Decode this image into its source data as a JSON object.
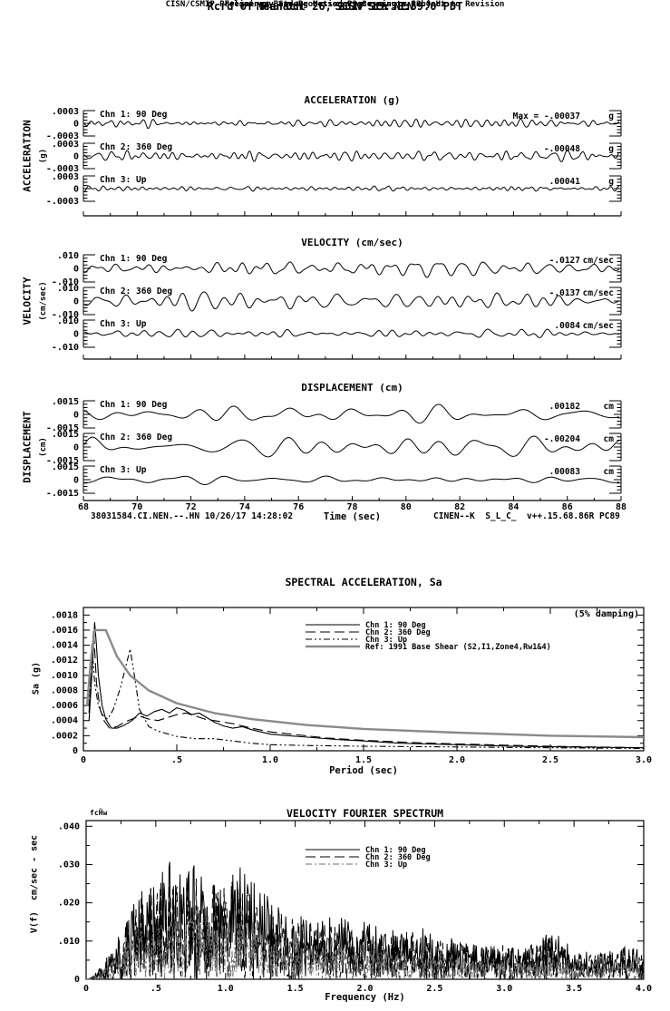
{
  "header": {
    "line1": "Neenach     SCSN Sta NEN",
    "line2": "Rcrd of Thu Oct 26, 2017 13:38:59.0 PDT",
    "line3": "Frequency Band Processed: 3.3 secs to 23.0 Hz",
    "line4": "CISN/CSMIP Preliminary Strong Motion Processing - Subject to Revision"
  },
  "footer": {
    "left": "38031584.CI.NEN.--.HN 10/26/17 14:28:02",
    "right": "CINEN--K  S_L_C_  v++.15.68.86R PC89"
  },
  "time_axis": {
    "label": "Time (sec)",
    "start": 68,
    "end": 88,
    "tick_labels": [
      "68",
      "70",
      "72",
      "74",
      "76",
      "78",
      "80",
      "82",
      "84",
      "86",
      "88"
    ]
  },
  "panels": {
    "acceleration": {
      "title": "ACCELERATION (g)",
      "side_label": "ACCELERATION",
      "side_unit": "(g)",
      "scale": {
        "top": ".0003",
        "zero": "0",
        "bottom": "-.0003"
      },
      "channels": [
        {
          "label": "Chn 1: 90 Deg",
          "peak": "Max =  -.00037",
          "unit": "g"
        },
        {
          "label": "Chn 2: 360 Deg",
          "peak": "-.00048",
          "unit": "g"
        },
        {
          "label": "Chn 3: Up",
          "peak": ".00041",
          "unit": "g"
        }
      ]
    },
    "velocity": {
      "title": "VELOCITY (cm/sec)",
      "side_label": "VELOCITY",
      "side_unit": "(cm/sec)",
      "scale": {
        "top": ".010",
        "zero": "0",
        "bottom": "-.010"
      },
      "channels": [
        {
          "label": "Chn 1: 90 Deg",
          "peak": "-.0127",
          "unit": "cm/sec"
        },
        {
          "label": "Chn 2: 360 Deg",
          "peak": "-.0137",
          "unit": "cm/sec"
        },
        {
          "label": "Chn 3: Up",
          "peak": ".0084",
          "unit": "cm/sec"
        }
      ]
    },
    "displacement": {
      "title": "DISPLACEMENT (cm)",
      "side_label": "DISPLACEMENT",
      "side_unit": "(cm)",
      "scale": {
        "top": ".0015",
        "zero": "0",
        "bottom": "-.0015"
      },
      "channels": [
        {
          "label": "Chn 1: 90 Deg",
          "peak": ".00182",
          "unit": "cm"
        },
        {
          "label": "Chn 2: 360 Deg",
          "peak": "-.00204",
          "unit": "cm"
        },
        {
          "label": "Chn 3: Up",
          "peak": ".00083",
          "unit": "cm"
        }
      ]
    }
  },
  "colors": {
    "ink": "#000000",
    "ref_gray": "#8a8a8a",
    "trace_gray": "#6e6e6e"
  },
  "chart_data": [
    {
      "id": "spectral_acceleration",
      "type": "line",
      "title": "SPECTRAL ACCELERATION, Sa",
      "note": "(5% damping)",
      "xlabel": "Period (sec)",
      "ylabel": "Sa (g)",
      "xlim": [
        0,
        3.0
      ],
      "ylim": [
        0,
        0.0019
      ],
      "grid": false,
      "legend_position": "upper-center-right",
      "xticks": [
        0,
        0.5,
        1.0,
        1.5,
        2.0,
        2.5,
        3.0
      ],
      "xtick_labels": [
        "0",
        ".5",
        "1.0",
        "1.5",
        "2.0",
        "2.5",
        "3.0"
      ],
      "yticks": [
        0.0002,
        0.0004,
        0.0006,
        0.0008,
        0.001,
        0.0012,
        0.0014,
        0.0016,
        0.0018
      ],
      "ytick_labels": [
        ".0002",
        ".0004",
        ".0006",
        ".0008",
        ".0010",
        ".0012",
        ".0014",
        ".0016",
        ".0018"
      ],
      "origin_label": "0",
      "legend": [
        {
          "name": "Chn 1: 90 Deg",
          "style": "solid",
          "color": "#000000"
        },
        {
          "name": "Chn 2: 360 Deg",
          "style": "long-dash",
          "color": "#000000"
        },
        {
          "name": "Chn 3: Up",
          "style": "dash-dot-dot",
          "color": "#000000"
        },
        {
          "name": "Ref: 1991 Base Shear (S2,I1,Zone4,Rw1&4)",
          "style": "solid-thick",
          "color": "#8a8a8a"
        }
      ],
      "series": [
        {
          "name": "Chn 1: 90 Deg",
          "style": "solid",
          "color": "#000000",
          "x": [
            0.03,
            0.05,
            0.06,
            0.07,
            0.08,
            0.1,
            0.12,
            0.15,
            0.18,
            0.22,
            0.26,
            0.3,
            0.34,
            0.38,
            0.42,
            0.46,
            0.5,
            0.54,
            0.58,
            0.62,
            0.66,
            0.7,
            0.75,
            0.8,
            0.85,
            0.9,
            1.0,
            1.1,
            1.2,
            1.35,
            1.5,
            1.7,
            2.0,
            2.3,
            2.6,
            3.0
          ],
          "y": [
            0.0004,
            0.0012,
            0.0017,
            0.0014,
            0.001,
            0.0006,
            0.00042,
            0.0003,
            0.0003,
            0.00034,
            0.0004,
            0.0005,
            0.00046,
            0.00052,
            0.00055,
            0.0005,
            0.00057,
            0.00054,
            0.00048,
            0.0005,
            0.00044,
            0.00038,
            0.00033,
            0.0003,
            0.00032,
            0.00028,
            0.00022,
            0.0002,
            0.00018,
            0.00015,
            0.00013,
            0.0001,
            8e-05,
            6e-05,
            5e-05,
            4e-05
          ]
        },
        {
          "name": "Chn 2: 360 Deg",
          "style": "long-dash",
          "color": "#000000",
          "x": [
            0.03,
            0.045,
            0.055,
            0.07,
            0.09,
            0.11,
            0.14,
            0.18,
            0.22,
            0.26,
            0.3,
            0.35,
            0.4,
            0.45,
            0.5,
            0.55,
            0.6,
            0.65,
            0.7,
            0.8,
            0.9,
            1.0,
            1.15,
            1.3,
            1.5,
            1.75,
            2.0,
            2.5,
            3.0
          ],
          "y": [
            0.0005,
            0.0013,
            0.0016,
            0.0009,
            0.00055,
            0.0004,
            0.0003,
            0.00032,
            0.00038,
            0.00042,
            0.00046,
            0.00042,
            0.0004,
            0.00044,
            0.00048,
            0.0005,
            0.00046,
            0.00042,
            0.0004,
            0.00036,
            0.0003,
            0.00025,
            0.00021,
            0.00017,
            0.00014,
            0.00011,
            9e-05,
            6e-05,
            4e-05
          ]
        },
        {
          "name": "Chn 3: Up",
          "style": "dash-dot-dot",
          "color": "#000000",
          "x": [
            0.03,
            0.045,
            0.06,
            0.08,
            0.1,
            0.13,
            0.16,
            0.2,
            0.23,
            0.25,
            0.27,
            0.3,
            0.35,
            0.4,
            0.5,
            0.6,
            0.7,
            0.8,
            0.9,
            1.0,
            1.2,
            1.5,
            2.0,
            2.5,
            3.0
          ],
          "y": [
            0.0006,
            0.0014,
            0.0009,
            0.0006,
            0.00048,
            0.00042,
            0.00055,
            0.00085,
            0.00115,
            0.00135,
            0.00105,
            0.00055,
            0.00032,
            0.00026,
            0.00019,
            0.00016,
            0.00016,
            0.00013,
            0.0001,
            8e-05,
            7e-05,
            6e-05,
            5e-05,
            4e-05,
            3e-05
          ]
        },
        {
          "name": "Ref: 1991 Base Shear (S2,I1,Zone4,Rw1&4)",
          "style": "solid-thick",
          "color": "#8a8a8a",
          "x": [
            0.02,
            0.04,
            0.06,
            0.12,
            0.18,
            0.25,
            0.35,
            0.5,
            0.7,
            0.9,
            1.2,
            1.5,
            2.0,
            2.5,
            3.0
          ],
          "y": [
            0.0006,
            0.0012,
            0.0016,
            0.0016,
            0.00125,
            0.001,
            0.0008,
            0.00063,
            0.0005,
            0.00042,
            0.00034,
            0.00029,
            0.00024,
            0.0002,
            0.00018
          ]
        }
      ]
    },
    {
      "id": "velocity_fourier_spectrum",
      "type": "line",
      "title": "VELOCITY FOURIER SPECTRUM",
      "corner_text": "fcḦw",
      "xlabel": "Frequency (Hz)",
      "ylabel": "V(f)  cm/sec - sec",
      "xlim": [
        0,
        4.0
      ],
      "ylim": [
        0,
        0.0415
      ],
      "grid": false,
      "legend_position": "upper-center-right",
      "xticks": [
        0,
        0.5,
        1.0,
        1.5,
        2.0,
        2.5,
        3.0,
        3.5,
        4.0
      ],
      "xtick_labels": [
        "0",
        ".5",
        "1.0",
        "1.5",
        "2.0",
        "2.5",
        "3.0",
        "3.5",
        "4.0"
      ],
      "yticks": [
        0.01,
        0.02,
        0.03,
        0.04
      ],
      "ytick_labels": [
        ".010",
        ".020",
        ".030",
        ".040"
      ],
      "origin_label": "0",
      "legend": [
        {
          "name": "Chn 1: 90 Deg",
          "style": "solid",
          "color": "#000000"
        },
        {
          "name": "Chn 2: 360 Deg",
          "style": "long-dash",
          "color": "#000000"
        },
        {
          "name": "Chn 3: Up",
          "style": "dash-dot",
          "color": "#6e6e6e"
        }
      ],
      "envelope_x": [
        0,
        0.08,
        0.15,
        0.22,
        0.3,
        0.4,
        0.5,
        0.6,
        0.7,
        0.8,
        0.9,
        1.0,
        1.1,
        1.2,
        1.3,
        1.45,
        1.6,
        1.8,
        2.0,
        2.2,
        2.4,
        2.6,
        2.8,
        3.0,
        3.2,
        3.35,
        3.5,
        3.7,
        3.9,
        4.0
      ],
      "envelope_y": [
        0.0,
        0.003,
        0.007,
        0.012,
        0.018,
        0.024,
        0.027,
        0.031,
        0.028,
        0.033,
        0.03,
        0.026,
        0.03,
        0.028,
        0.022,
        0.018,
        0.016,
        0.017,
        0.015,
        0.013,
        0.014,
        0.011,
        0.009,
        0.01,
        0.009,
        0.013,
        0.008,
        0.007,
        0.009,
        0.007
      ],
      "series": [
        {
          "name": "Chn 1: 90 Deg",
          "style": "solid",
          "color": "#000000",
          "weight": 1.0,
          "seed": 41
        },
        {
          "name": "Chn 2: 360 Deg",
          "style": "long-dash",
          "color": "#000000",
          "weight": 0.92,
          "seed": 42
        },
        {
          "name": "Chn 3: Up",
          "style": "dash-dot",
          "color": "#6e6e6e",
          "weight": 0.55,
          "seed": 43
        }
      ]
    }
  ]
}
